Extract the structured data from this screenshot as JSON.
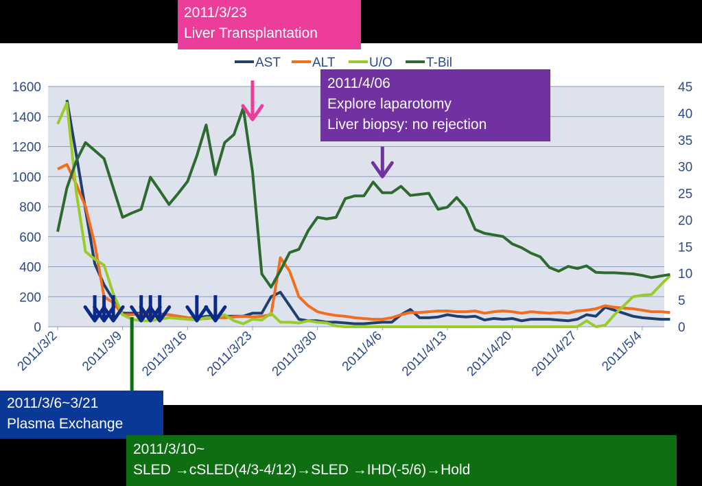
{
  "chart_data": {
    "type": "line",
    "x": [
      "2011/3/2",
      "2011/3/3",
      "2011/3/4",
      "2011/3/5",
      "2011/3/6",
      "2011/3/7",
      "2011/3/8",
      "2011/3/9",
      "2011/3/10",
      "2011/3/11",
      "2011/3/12",
      "2011/3/13",
      "2011/3/14",
      "2011/3/15",
      "2011/3/16",
      "2011/3/17",
      "2011/3/18",
      "2011/3/19",
      "2011/3/20",
      "2011/3/21",
      "2011/3/22",
      "2011/3/23",
      "2011/3/24",
      "2011/3/25",
      "2011/3/26",
      "2011/3/27",
      "2011/3/28",
      "2011/3/29",
      "2011/3/30",
      "2011/3/31",
      "2011/4/1",
      "2011/4/2",
      "2011/4/3",
      "2011/4/4",
      "2011/4/5",
      "2011/4/6",
      "2011/4/7",
      "2011/4/8",
      "2011/4/9",
      "2011/4/10",
      "2011/4/11",
      "2011/4/12",
      "2011/4/13",
      "2011/4/14",
      "2011/4/15",
      "2011/4/16",
      "2011/4/17",
      "2011/4/18",
      "2011/4/19",
      "2011/4/20",
      "2011/4/21",
      "2011/4/22",
      "2011/4/23",
      "2011/4/24",
      "2011/4/25",
      "2011/4/26",
      "2011/4/27",
      "2011/4/28",
      "2011/4/29",
      "2011/4/30",
      "2011/5/1",
      "2011/5/2",
      "2011/5/3",
      "2011/5/4",
      "2011/5/5",
      "2011/5/6"
    ],
    "x_ticks": [
      "2011/3/2",
      "2011/3/9",
      "2011/3/16",
      "2011/3/23",
      "2011/3/30",
      "2011/4/6",
      "2011/4/13",
      "2011/4/20",
      "2011/4/27",
      "2011/5/4"
    ],
    "y_left": {
      "ylim": [
        0,
        1600
      ],
      "ticks": [
        "0",
        "200",
        "400",
        "600",
        "800",
        "1000",
        "1200",
        "1400",
        "1600"
      ]
    },
    "y_right": {
      "ylim": [
        0,
        45
      ],
      "ticks": [
        "0",
        "5",
        "10",
        "15",
        "20",
        "25",
        "30",
        "35",
        "40",
        "45"
      ]
    },
    "legend_position": "top",
    "grid": true,
    "plot_background": "#dee2ec",
    "series": [
      {
        "name": "AST",
        "axis": "left",
        "color": "#1f3f6e",
        "points": [
          [
            1,
            1510
          ],
          [
            2,
            1150
          ],
          [
            3,
            780
          ],
          [
            4,
            420
          ],
          [
            5,
            280
          ],
          [
            6,
            180
          ],
          [
            7,
            90
          ],
          [
            8,
            90
          ],
          [
            9,
            90
          ],
          [
            10,
            90
          ],
          [
            11,
            85
          ],
          [
            12,
            80
          ],
          [
            13,
            70
          ],
          [
            14,
            60
          ],
          [
            15,
            55
          ],
          [
            16,
            70
          ],
          [
            17,
            70
          ],
          [
            18,
            70
          ],
          [
            19,
            70
          ],
          [
            20,
            70
          ],
          [
            21,
            90
          ],
          [
            22,
            90
          ],
          [
            23,
            200
          ],
          [
            24,
            230
          ],
          [
            25,
            140
          ],
          [
            26,
            50
          ],
          [
            27,
            40
          ],
          [
            28,
            40
          ],
          [
            29,
            30
          ],
          [
            30,
            30
          ],
          [
            31,
            25
          ],
          [
            32,
            20
          ],
          [
            33,
            20
          ],
          [
            34,
            25
          ],
          [
            35,
            30
          ],
          [
            36,
            30
          ],
          [
            37,
            80
          ],
          [
            38,
            115
          ],
          [
            39,
            60
          ],
          [
            40,
            60
          ],
          [
            41,
            65
          ],
          [
            42,
            80
          ],
          [
            43,
            70
          ],
          [
            44,
            65
          ],
          [
            45,
            70
          ],
          [
            46,
            45
          ],
          [
            47,
            55
          ],
          [
            48,
            50
          ],
          [
            49,
            55
          ],
          [
            50,
            40
          ],
          [
            51,
            50
          ],
          [
            52,
            50
          ],
          [
            53,
            50
          ],
          [
            54,
            45
          ],
          [
            55,
            40
          ],
          [
            56,
            50
          ],
          [
            57,
            80
          ],
          [
            58,
            70
          ],
          [
            59,
            130
          ],
          [
            60,
            110
          ],
          [
            61,
            90
          ],
          [
            62,
            70
          ],
          [
            63,
            60
          ],
          [
            64,
            55
          ],
          [
            65,
            50
          ],
          [
            66,
            50
          ]
        ]
      },
      {
        "name": "ALT",
        "axis": "left",
        "color": "#f26d1e",
        "points": [
          [
            0,
            1050
          ],
          [
            1,
            1080
          ],
          [
            2,
            950
          ],
          [
            3,
            800
          ],
          [
            4,
            550
          ],
          [
            5,
            200
          ],
          [
            6,
            160
          ],
          [
            7,
            80
          ],
          [
            8,
            80
          ],
          [
            9,
            85
          ],
          [
            10,
            90
          ],
          [
            11,
            80
          ],
          [
            12,
            80
          ],
          [
            13,
            70
          ],
          [
            14,
            60
          ],
          [
            15,
            50
          ],
          [
            16,
            55
          ],
          [
            17,
            60
          ],
          [
            18,
            60
          ],
          [
            19,
            65
          ],
          [
            20,
            70
          ],
          [
            21,
            65
          ],
          [
            22,
            70
          ],
          [
            23,
            80
          ],
          [
            24,
            460
          ],
          [
            25,
            370
          ],
          [
            26,
            200
          ],
          [
            27,
            140
          ],
          [
            28,
            100
          ],
          [
            29,
            85
          ],
          [
            30,
            75
          ],
          [
            31,
            70
          ],
          [
            32,
            60
          ],
          [
            33,
            55
          ],
          [
            34,
            50
          ],
          [
            35,
            50
          ],
          [
            36,
            60
          ],
          [
            37,
            80
          ],
          [
            38,
            95
          ],
          [
            39,
            95
          ],
          [
            40,
            100
          ],
          [
            41,
            105
          ],
          [
            42,
            105
          ],
          [
            43,
            100
          ],
          [
            44,
            100
          ],
          [
            45,
            105
          ],
          [
            46,
            90
          ],
          [
            47,
            100
          ],
          [
            48,
            105
          ],
          [
            49,
            100
          ],
          [
            50,
            90
          ],
          [
            51,
            100
          ],
          [
            52,
            95
          ],
          [
            53,
            90
          ],
          [
            54,
            95
          ],
          [
            55,
            90
          ],
          [
            56,
            105
          ],
          [
            57,
            110
          ],
          [
            58,
            120
          ],
          [
            59,
            140
          ],
          [
            60,
            130
          ],
          [
            61,
            125
          ],
          [
            62,
            120
          ],
          [
            63,
            110
          ],
          [
            64,
            100
          ],
          [
            65,
            100
          ],
          [
            66,
            95
          ]
        ]
      },
      {
        "name": "U/O",
        "axis": "left",
        "color": "#99cc2a",
        "points": [
          [
            0,
            1350
          ],
          [
            1,
            1490
          ],
          [
            2,
            900
          ],
          [
            3,
            500
          ],
          [
            4,
            450
          ],
          [
            5,
            410
          ],
          [
            6,
            220
          ],
          [
            7,
            80
          ],
          [
            8,
            50
          ],
          [
            9,
            40
          ],
          [
            10,
            40
          ],
          [
            11,
            50
          ],
          [
            12,
            60
          ],
          [
            13,
            55
          ],
          [
            14,
            50
          ],
          [
            15,
            45
          ],
          [
            16,
            60
          ],
          [
            17,
            60
          ],
          [
            18,
            80
          ],
          [
            19,
            40
          ],
          [
            20,
            20
          ],
          [
            21,
            50
          ],
          [
            22,
            45
          ],
          [
            23,
            90
          ],
          [
            24,
            30
          ],
          [
            25,
            30
          ],
          [
            26,
            25
          ],
          [
            27,
            40
          ],
          [
            28,
            30
          ],
          [
            29,
            25
          ],
          [
            30,
            5
          ],
          [
            31,
            0
          ],
          [
            32,
            0
          ],
          [
            33,
            0
          ],
          [
            34,
            0
          ],
          [
            35,
            0
          ],
          [
            36,
            0
          ],
          [
            37,
            0
          ],
          [
            38,
            0
          ],
          [
            39,
            0
          ],
          [
            40,
            0
          ],
          [
            41,
            0
          ],
          [
            42,
            0
          ],
          [
            43,
            0
          ],
          [
            44,
            0
          ],
          [
            45,
            0
          ],
          [
            46,
            0
          ],
          [
            47,
            0
          ],
          [
            48,
            0
          ],
          [
            49,
            0
          ],
          [
            50,
            0
          ],
          [
            51,
            0
          ],
          [
            52,
            0
          ],
          [
            53,
            0
          ],
          [
            54,
            0
          ],
          [
            55,
            0
          ],
          [
            56,
            0
          ],
          [
            57,
            40
          ],
          [
            58,
            0
          ],
          [
            59,
            10
          ],
          [
            60,
            80
          ],
          [
            61,
            140
          ],
          [
            62,
            200
          ],
          [
            63,
            210
          ],
          [
            64,
            215
          ],
          [
            65,
            280
          ],
          [
            66,
            340
          ]
        ]
      },
      {
        "name": "T-Bil",
        "axis": "right",
        "color": "#2d6a2f",
        "points": [
          [
            0,
            17.8
          ],
          [
            1,
            26
          ],
          [
            2,
            31
          ],
          [
            3,
            34.5
          ],
          [
            4,
            33
          ],
          [
            5,
            31.5
          ],
          [
            6,
            26
          ],
          [
            7,
            20.5
          ],
          [
            8,
            21.3
          ],
          [
            9,
            22
          ],
          [
            10,
            28
          ],
          [
            11,
            25.5
          ],
          [
            12,
            22.9
          ],
          [
            13,
            25
          ],
          [
            14,
            27.2
          ],
          [
            15,
            32
          ],
          [
            16,
            37.8
          ],
          [
            17,
            28.5
          ],
          [
            18,
            34.5
          ],
          [
            19,
            36
          ],
          [
            20,
            41
          ],
          [
            21,
            29
          ],
          [
            22,
            9.9
          ],
          [
            23,
            7.4
          ],
          [
            24,
            10.5
          ],
          [
            25,
            13.9
          ],
          [
            26,
            14.5
          ],
          [
            27,
            18
          ],
          [
            28,
            20.5
          ],
          [
            29,
            20.2
          ],
          [
            30,
            20.5
          ],
          [
            31,
            24
          ],
          [
            32,
            24.5
          ],
          [
            33,
            24.5
          ],
          [
            34,
            27.1
          ],
          [
            35,
            25.1
          ],
          [
            36,
            25.1
          ],
          [
            37,
            26.3
          ],
          [
            38,
            24.6
          ],
          [
            39,
            24.8
          ],
          [
            40,
            25
          ],
          [
            41,
            22
          ],
          [
            42,
            22.4
          ],
          [
            43,
            24.2
          ],
          [
            44,
            22.2
          ],
          [
            45,
            18.2
          ],
          [
            46,
            17.5
          ],
          [
            47,
            17.2
          ],
          [
            48,
            16.9
          ],
          [
            49,
            15.5
          ],
          [
            50,
            14.8
          ],
          [
            51,
            13.8
          ],
          [
            52,
            13.1
          ],
          [
            53,
            11.1
          ],
          [
            54,
            10.4
          ],
          [
            55,
            11.3
          ],
          [
            56,
            10.9
          ],
          [
            57,
            11.4
          ],
          [
            58,
            10.2
          ],
          [
            59,
            10.1
          ],
          [
            60,
            10.1
          ],
          [
            61,
            10
          ],
          [
            62,
            9.9
          ],
          [
            63,
            9.6
          ],
          [
            64,
            9.2
          ],
          [
            65,
            9.5
          ],
          [
            66,
            9.8
          ]
        ]
      }
    ],
    "marker_arrows": [
      {
        "color": "#0a2a8a",
        "x": [
          "2011/3/6",
          "2011/3/7",
          "2011/3/8",
          "2011/3/11",
          "2011/3/12",
          "2011/3/13",
          "2011/3/17",
          "2011/3/19"
        ],
        "y_from": 210,
        "y_to": 40
      },
      {
        "color": "#ec3d9a",
        "x": [
          "2011/3/23"
        ],
        "y_from": 1640,
        "y_to": 1380
      },
      {
        "color": "#7131a1",
        "x": [
          "2011/4/6"
        ],
        "y_from": 1200,
        "y_to": 1000
      }
    ]
  },
  "annotations": {
    "liver_transplant": {
      "line1": "2011/3/23",
      "line2": "Liver Transplantation",
      "bg": "#ec3d9a"
    },
    "laparotomy": {
      "line1": "2011/4/06",
      "line2": "Explore laparotomy",
      "line3": "Liver biopsy: no rejection",
      "bg": "#7131a1"
    },
    "plasma_exchange": {
      "line1": "2011/3/6~3/21",
      "line2": "Plasma Exchange",
      "bg": "#0a3896"
    },
    "sled": {
      "line1": "2011/3/10~",
      "line2": "SLED →cSLED(4/3-4/12)→SLED →IHD(-5/6)→Hold",
      "bg": "#0d6e12"
    }
  }
}
